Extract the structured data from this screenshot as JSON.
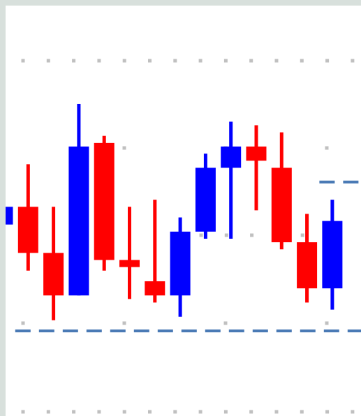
{
  "chart_data": {
    "type": "candlestick",
    "title": "",
    "xlabel": "",
    "ylabel": "",
    "grid": true,
    "legend": "none",
    "colors": {
      "up": "#0000ff",
      "down": "#ff0000",
      "reference_line": "#4a7ab5",
      "grid_dot": "#c0c0c0"
    },
    "ylim": [
      0,
      100
    ],
    "candles": [
      {
        "open": 54,
        "close": 59,
        "high": 59,
        "low": 40,
        "direction": "up"
      },
      {
        "open": 59,
        "close": 46,
        "high": 71,
        "low": 41,
        "direction": "down"
      },
      {
        "open": 46,
        "close": 34,
        "high": 59,
        "low": 27,
        "direction": "down"
      },
      {
        "open": 34,
        "close": 76,
        "high": 88,
        "low": 34,
        "direction": "up"
      },
      {
        "open": 77,
        "close": 44,
        "high": 79,
        "low": 41,
        "direction": "down"
      },
      {
        "open": 44,
        "close": 42,
        "high": 59,
        "low": 33,
        "direction": "down"
      },
      {
        "open": 38,
        "close": 34,
        "high": 61,
        "low": 32,
        "direction": "down"
      },
      {
        "open": 34,
        "close": 52,
        "high": 56,
        "low": 28,
        "direction": "up"
      },
      {
        "open": 52,
        "close": 70,
        "high": 74,
        "low": 50,
        "direction": "up"
      },
      {
        "open": 70,
        "close": 76,
        "high": 83,
        "low": 50,
        "direction": "up"
      },
      {
        "open": 76,
        "close": 72,
        "high": 82,
        "low": 58,
        "direction": "down"
      },
      {
        "open": 70,
        "close": 49,
        "high": 80,
        "low": 47,
        "direction": "down"
      },
      {
        "open": 49,
        "close": 36,
        "high": 57,
        "low": 32,
        "direction": "down"
      },
      {
        "open": 36,
        "close": 55,
        "high": 61,
        "low": 30,
        "direction": "up"
      }
    ],
    "reference_lines": [
      {
        "y": 66,
        "style": "dashed",
        "from_candle": 13
      },
      {
        "y": 24,
        "style": "dashed",
        "from_candle": 1
      }
    ]
  }
}
